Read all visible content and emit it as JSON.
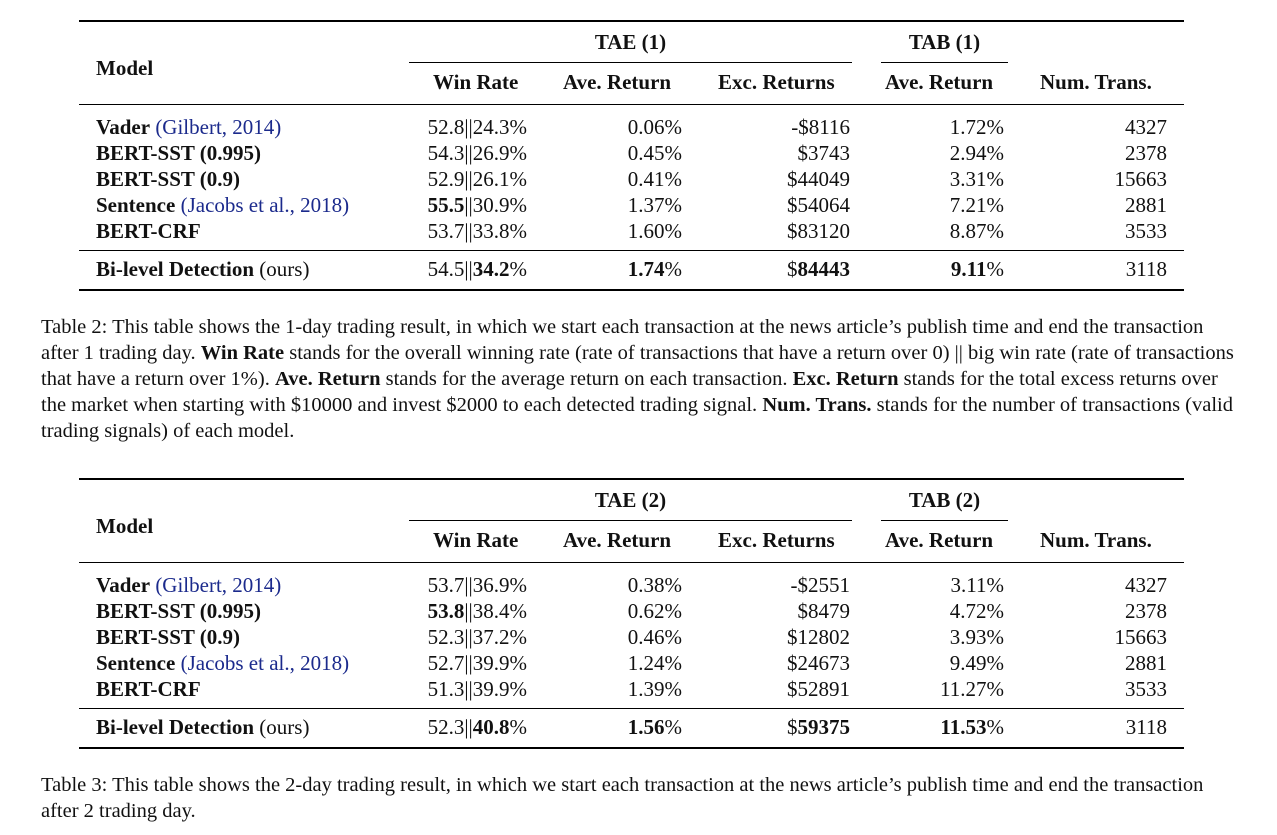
{
  "table1": {
    "model_header": "Model",
    "group1": "TAE (1)",
    "group2": "TAB (1)",
    "columns": [
      "Win Rate",
      "Ave. Return",
      "Exc. Returns",
      "Ave. Return",
      "Num. Trans."
    ],
    "rows": [
      {
        "name": "Vader",
        "cite": "(Gilbert, 2014)",
        "win_a": "52.8",
        "win_b": "24.3%",
        "ave": "0.06%",
        "exc": "-$8116",
        "tab": "1.72%",
        "num": "4327"
      },
      {
        "name": "BERT-SST (0.995)",
        "cite": "",
        "win_a": "54.3",
        "win_b": "26.9%",
        "ave": "0.45%",
        "exc": "$3743",
        "tab": "2.94%",
        "num": "2378"
      },
      {
        "name": "BERT-SST (0.9)",
        "cite": "",
        "win_a": "52.9",
        "win_b": "26.1%",
        "ave": "0.41%",
        "exc": "$44049",
        "tab": "3.31%",
        "num": "15663"
      },
      {
        "name": "Sentence",
        "cite": "(Jacobs et al., 2018)",
        "win_a": "55.5",
        "win_b": "30.9%",
        "ave": "1.37%",
        "exc": "$54064",
        "tab": "7.21%",
        "num": "2881"
      },
      {
        "name": "BERT-CRF",
        "cite": "",
        "win_a": "53.7",
        "win_b": "33.8%",
        "ave": "1.60%",
        "exc": "$83120",
        "tab": "8.87%",
        "num": "3533"
      }
    ],
    "final": {
      "name": "Bi-level Detection",
      "suffix": "(ours)",
      "win_a": "54.5",
      "win_b": "34.2",
      "win_b_pct": "%",
      "ave": "1.74",
      "ave_pct": "%",
      "exc_cur": "$",
      "exc": "84443",
      "tab": "9.11",
      "tab_pct": "%",
      "num": "3118"
    }
  },
  "caption1": {
    "label": "Table 2:",
    "t1": "This table shows the 1-day trading result, in which we start each transaction at the news article’s publish time and end the transaction after 1 trading day.",
    "k1": "Win Rate",
    "t2": "stands for the overall winning rate (rate of transactions that have a return over 0) || big win rate (rate of transactions that have a return over 1%).",
    "k2": "Ave. Return",
    "t3": "stands for the average return on each transaction.",
    "k3": "Exc. Return",
    "t4": "stands for the total excess returns over the market when starting with $10000 and invest $2000 to each detected trading signal.",
    "k4": "Num. Trans.",
    "t5": "stands for the number of transactions (valid trading signals) of each model."
  },
  "table2": {
    "model_header": "Model",
    "group1": "TAE (2)",
    "group2": "TAB (2)",
    "columns": [
      "Win Rate",
      "Ave. Return",
      "Exc. Returns",
      "Ave. Return",
      "Num. Trans."
    ],
    "rows": [
      {
        "name": "Vader",
        "cite": "(Gilbert, 2014)",
        "win_a": "53.7",
        "win_b": "36.9%",
        "ave": "0.38%",
        "exc": "-$2551",
        "tab": "3.11%",
        "num": "4327"
      },
      {
        "name": "BERT-SST (0.995)",
        "cite": "",
        "win_a": "53.8",
        "win_b": "38.4%",
        "ave": "0.62%",
        "exc": "$8479",
        "tab": "4.72%",
        "num": "2378"
      },
      {
        "name": "BERT-SST (0.9)",
        "cite": "",
        "win_a": "52.3",
        "win_b": "37.2%",
        "ave": "0.46%",
        "exc": "$12802",
        "tab": "3.93%",
        "num": "15663"
      },
      {
        "name": "Sentence",
        "cite": "(Jacobs et al., 2018)",
        "win_a": "52.7",
        "win_b": "39.9%",
        "ave": "1.24%",
        "exc": "$24673",
        "tab": "9.49%",
        "num": "2881"
      },
      {
        "name": "BERT-CRF",
        "cite": "",
        "win_a": "51.3",
        "win_b": "39.9%",
        "ave": "1.39%",
        "exc": "$52891",
        "tab": "11.27%",
        "num": "3533"
      }
    ],
    "final": {
      "name": "Bi-level Detection",
      "suffix": "(ours)",
      "win_a": "52.3",
      "win_b": "40.8",
      "win_b_pct": "%",
      "ave": "1.56",
      "ave_pct": "%",
      "exc_cur": "$",
      "exc": "59375",
      "tab": "11.53",
      "tab_pct": "%",
      "num": "3118"
    }
  },
  "caption2": {
    "label": "Table 3:",
    "t1": "This table shows the 2-day trading result, in which we start each transaction at the news article’s publish time and end the transaction after 2 trading day."
  },
  "colors": {
    "citation": "#1b2a8c"
  }
}
